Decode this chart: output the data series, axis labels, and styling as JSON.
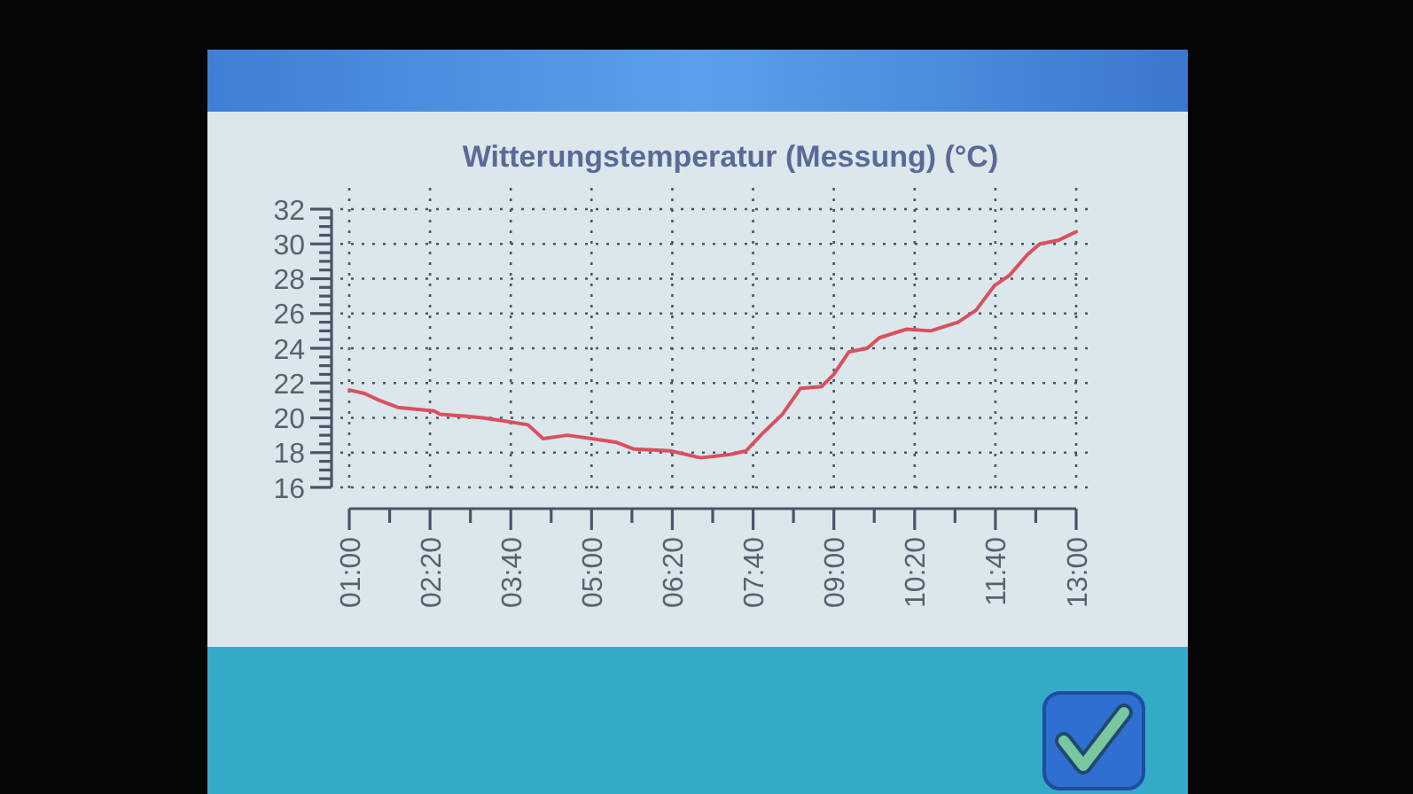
{
  "chart_data": {
    "type": "line",
    "title": "Witterungstemperatur (Messung) (°C)",
    "x": [
      1.0,
      1.25,
      1.5,
      1.8,
      2.1,
      2.4,
      2.5,
      2.9,
      3.2,
      3.6,
      3.95,
      4.2,
      4.6,
      5.0,
      5.4,
      5.7,
      6.3,
      6.8,
      7.3,
      7.55,
      7.85,
      8.15,
      8.45,
      8.8,
      9.0,
      9.25,
      9.55,
      9.75,
      10.2,
      10.6,
      11.05,
      11.35,
      11.65,
      11.9,
      12.2,
      12.4,
      12.7,
      13.0
    ],
    "series": [
      {
        "color": "#d9505f",
        "values": [
          21.6,
          21.4,
          21.0,
          20.6,
          20.5,
          20.4,
          20.2,
          20.1,
          20.0,
          19.8,
          19.6,
          18.8,
          19.0,
          18.8,
          18.6,
          18.2,
          18.1,
          17.7,
          17.9,
          18.1,
          19.2,
          20.2,
          21.7,
          21.8,
          22.5,
          23.8,
          24.0,
          24.6,
          25.1,
          25.0,
          25.5,
          26.2,
          27.6,
          28.2,
          29.4,
          30.0,
          30.2,
          30.7
        ]
      }
    ],
    "xlim": [
      1,
      13
    ],
    "xticks": [
      {
        "value": 1,
        "label": "01:00"
      },
      {
        "value": 1.6667,
        "label": null
      },
      {
        "value": 2.3333,
        "label": "02:20"
      },
      {
        "value": 3,
        "label": null
      },
      {
        "value": 3.6667,
        "label": "03:40"
      },
      {
        "value": 4.3333,
        "label": null
      },
      {
        "value": 5,
        "label": "05:00"
      },
      {
        "value": 5.6667,
        "label": null
      },
      {
        "value": 6.3333,
        "label": "06:20"
      },
      {
        "value": 7,
        "label": null
      },
      {
        "value": 7.6667,
        "label": "07:40"
      },
      {
        "value": 8.3333,
        "label": null
      },
      {
        "value": 9,
        "label": "09:00"
      },
      {
        "value": 9.6667,
        "label": null
      },
      {
        "value": 10.3333,
        "label": "10:20"
      },
      {
        "value": 11,
        "label": null
      },
      {
        "value": 11.6667,
        "label": "11:40"
      },
      {
        "value": 12.3333,
        "label": null
      },
      {
        "value": 13,
        "label": "13:00"
      }
    ],
    "ylim": [
      16,
      32
    ],
    "yticks": [
      16,
      {
        "value": 16.5,
        "label": null
      },
      {
        "value": 17,
        "label": null
      },
      {
        "value": 17.5,
        "label": null
      },
      18,
      {
        "value": 18.5,
        "label": null
      },
      {
        "value": 19,
        "label": null
      },
      {
        "value": 19.5,
        "label": null
      },
      20,
      {
        "value": 20.5,
        "label": null
      },
      {
        "value": 21,
        "label": null
      },
      {
        "value": 21.5,
        "label": null
      },
      22,
      {
        "value": 22.5,
        "label": null
      },
      {
        "value": 23,
        "label": null
      },
      {
        "value": 23.5,
        "label": null
      },
      24,
      {
        "value": 24.5,
        "label": null
      },
      {
        "value": 25,
        "label": null
      },
      {
        "value": 25.5,
        "label": null
      },
      26,
      {
        "value": 26.5,
        "label": null
      },
      {
        "value": 27,
        "label": null
      },
      {
        "value": 27.5,
        "label": null
      },
      28,
      {
        "value": 28.5,
        "label": null
      },
      {
        "value": 29,
        "label": null
      },
      {
        "value": 29.5,
        "label": null
      },
      30,
      {
        "value": 30.5,
        "label": null
      },
      {
        "value": 31,
        "label": null
      },
      {
        "value": 31.5,
        "label": null
      },
      32
    ],
    "grid": true
  }
}
